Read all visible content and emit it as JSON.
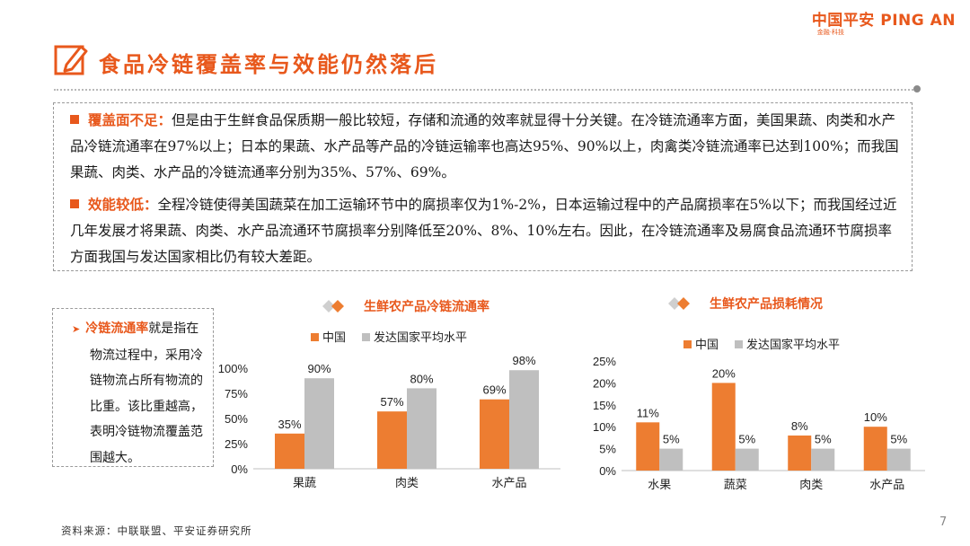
{
  "brand": {
    "name": "中国平安 PING AN",
    "sub": "金融·科技"
  },
  "title": "食品冷链覆盖率与效能仍然落后",
  "points": [
    {
      "head": "覆盖面不足",
      "text": "但是由于生鲜食品保质期一般比较短，存储和流通的效率就显得十分关键。在冷链流通率方面，美国果蔬、肉类和水产品冷链流通率在97%以上；日本的果蔬、水产品等产品的冷链运输率也高达95%、90%以上，肉禽类冷链流通率已达到100%；而我国果蔬、肉类、水产品的冷链流通率分别为35%、57%、69%。"
    },
    {
      "head": "效能较低",
      "text": "全程冷链使得美国蔬菜在加工运输环节中的腐损率仅为1%-2%，日本运输过程中的产品腐损率在5%以下；而我国经过近几年发展才将果蔬、肉类、水产品流通环节腐损率分别降低至20%、8%、10%左右。因此，在冷链流通率及易腐食品流通环节腐损率方面我国与发达国家相比仍有较大差距。"
    }
  ],
  "note": {
    "term": "冷链流通率",
    "text": "就是指在物流过程中，采用冷链物流占所有物流的比重。该比重越高，表明冷链物流覆盖范围越大。"
  },
  "source": "资料来源：中联联盟、平安证券研究所",
  "page_number": "7",
  "colors": {
    "accent": "#ED7D31",
    "gray": "#BFBFBF",
    "brand": "#E8581C"
  },
  "chart_data": [
    {
      "type": "bar",
      "title": "生鲜农产品冷链流通率",
      "categories": [
        "果蔬",
        "肉类",
        "水产品"
      ],
      "series": [
        {
          "name": "中国",
          "values": [
            35,
            57,
            69
          ],
          "labels": [
            "35%",
            "57%",
            "69%"
          ],
          "color": "#ED7D31"
        },
        {
          "name": "发达国家平均水平",
          "values": [
            90,
            80,
            98
          ],
          "labels": [
            "90%",
            "80%",
            "98%"
          ],
          "color": "#BFBFBF"
        }
      ],
      "ylim": [
        0,
        100
      ],
      "yticks": [
        "0%",
        "25%",
        "50%",
        "75%",
        "100%"
      ],
      "legend": "top"
    },
    {
      "type": "bar",
      "title": "生鲜农产品损耗情况",
      "categories": [
        "水果",
        "蔬菜",
        "肉类",
        "水产品"
      ],
      "series": [
        {
          "name": "中国",
          "values": [
            11,
            20,
            8,
            10
          ],
          "labels": [
            "11%",
            "20%",
            "8%",
            "10%"
          ],
          "color": "#ED7D31"
        },
        {
          "name": "发达国家平均水平",
          "values": [
            5,
            5,
            5,
            5
          ],
          "labels": [
            "5%",
            "5%",
            "5%",
            "5%"
          ],
          "color": "#BFBFBF"
        }
      ],
      "ylim": [
        0,
        25
      ],
      "yticks": [
        "0%",
        "5%",
        "10%",
        "15%",
        "20%",
        "25%"
      ],
      "legend": "top"
    }
  ]
}
